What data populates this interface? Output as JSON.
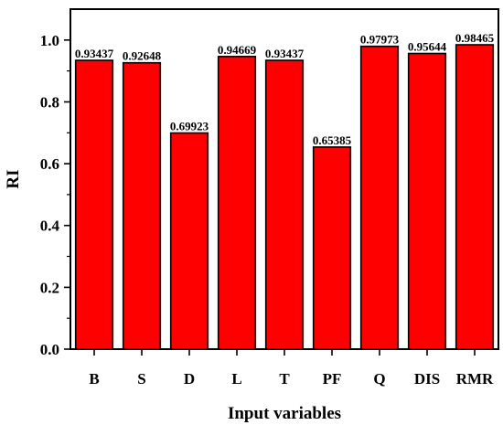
{
  "chart_data": {
    "type": "bar",
    "categories": [
      "B",
      "S",
      "D",
      "L",
      "T",
      "PF",
      "Q",
      "DIS",
      "RMR"
    ],
    "values": [
      0.93437,
      0.92648,
      0.69923,
      0.94669,
      0.93437,
      0.65385,
      0.97973,
      0.95644,
      0.98465
    ],
    "data_labels": [
      "0.93437",
      "0.92648",
      "0.69923",
      "0.94669",
      "0.93437",
      "0.65385",
      "0.97973",
      "0.95644",
      "0.98465"
    ],
    "title": "",
    "xlabel": "Input variables",
    "ylabel": "RI",
    "ylim": [
      0,
      1.1
    ],
    "yticks": [
      0.0,
      0.2,
      0.4,
      0.6,
      0.8,
      1.0
    ],
    "ytick_labels": [
      "0.0",
      "0.2",
      "0.4",
      "0.6",
      "0.8",
      "1.0"
    ],
    "grid": false,
    "legend": "none",
    "bar_color": "#ff0000",
    "edge_color": "#000000"
  }
}
